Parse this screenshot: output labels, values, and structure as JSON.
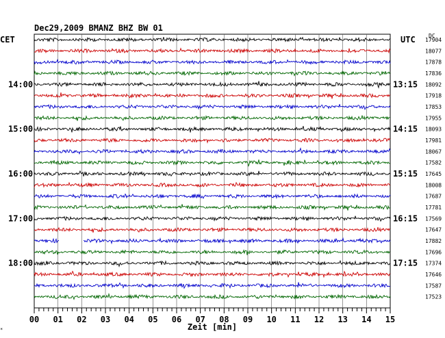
{
  "chart_data": {
    "type": "line",
    "title": "Dec29,2009   BMANZ BHZ BW 01",
    "xlabel": "Zeit [min]",
    "left_axis_label": "CET",
    "right_axis_label": "UTC",
    "dc_label": "DC",
    "x_ticks": [
      "00",
      "01",
      "02",
      "03",
      "04",
      "05",
      "06",
      "07",
      "08",
      "09",
      "10",
      "11",
      "12",
      "13",
      "14",
      "15"
    ],
    "xlim": [
      0,
      15
    ],
    "left_hour_labels": [
      {
        "row": 4,
        "text": "14:00"
      },
      {
        "row": 8,
        "text": "15:00"
      },
      {
        "row": 12,
        "text": "16:00"
      },
      {
        "row": 16,
        "text": "17:00"
      },
      {
        "row": 20,
        "text": "18:00"
      }
    ],
    "right_hour_labels": [
      {
        "row": 4,
        "text": "13:15"
      },
      {
        "row": 8,
        "text": "14:15"
      },
      {
        "row": 12,
        "text": "15:15"
      },
      {
        "row": 16,
        "text": "16:15"
      },
      {
        "row": 20,
        "text": "17:15"
      }
    ],
    "trace_colors": [
      "#000000",
      "#cc0000",
      "#0000cc",
      "#006600"
    ],
    "dc_values": [
      "17904",
      "18077",
      "17878",
      "17836",
      "18092",
      "17918",
      "17853",
      "17955",
      "18093",
      "17981",
      "18067",
      "17582",
      "17645",
      "18008",
      "17687",
      "17781",
      "17569",
      "17647",
      "17882",
      "17696",
      "17374",
      "17646",
      "17587",
      "17523"
    ],
    "gap": {
      "row": 18,
      "from_min": 1.05,
      "to_min": 2.05
    }
  },
  "footer_mark": "*"
}
